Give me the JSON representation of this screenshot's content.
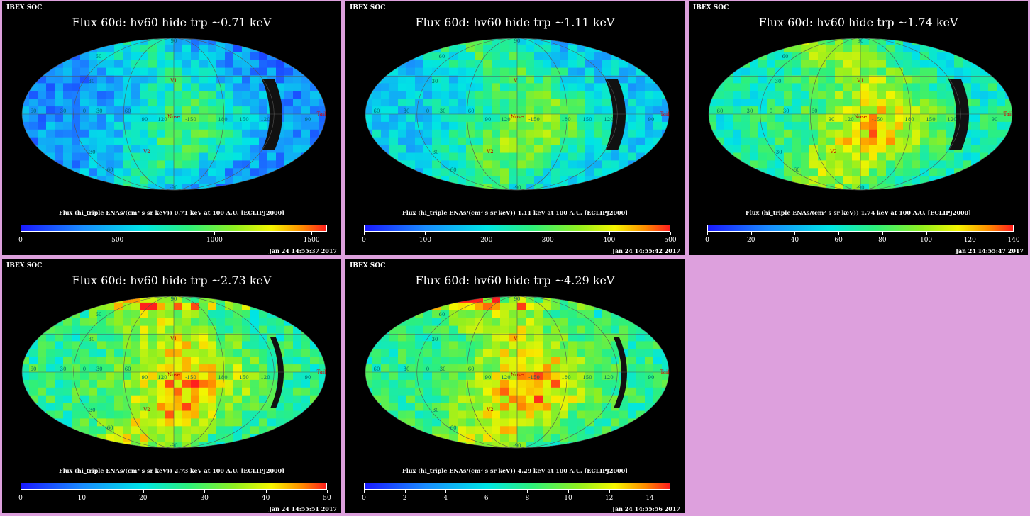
{
  "panels": [
    {
      "soc": "IBEX SOC",
      "title": "Flux   60d: hv60 hide trp ~0.71 keV",
      "cb_label": "Flux (hi_triple ENAs/(cm² s sr keV))  0.71 keV at 100 A.U. [ECLIPJ2000]",
      "date": "Jan 24 14:55:37 2017",
      "ticks": [
        "0",
        "500",
        "1000",
        "1500"
      ],
      "cmax": 1580,
      "seed": 3,
      "base": 0.2
    },
    {
      "soc": "IBEX SOC",
      "title": "Flux   60d: hv60 hide trp ~1.11 keV",
      "cb_label": "Flux (hi_triple ENAs/(cm² s sr keV))  1.11 keV at 100 A.U. [ECLIPJ2000]",
      "date": "Jan 24 14:55:42 2017",
      "ticks": [
        "0",
        "100",
        "200",
        "300",
        "400",
        "500"
      ],
      "cmax": 500,
      "seed": 7,
      "base": 0.32
    },
    {
      "soc": "IBEX SOC",
      "title": "Flux   60d: hv60 hide trp ~1.74 keV",
      "cb_label": "Flux (hi_triple ENAs/(cm² s sr keV))  1.74 keV at 100 A.U. [ECLIPJ2000]",
      "date": "Jan 24 14:55:47 2017",
      "ticks": [
        "0",
        "20",
        "40",
        "60",
        "80",
        "100",
        "120",
        "140"
      ],
      "cmax": 140,
      "seed": 11,
      "base": 0.45
    },
    {
      "soc": "IBEX SOC",
      "title": "Flux   60d: hv60 hide trp ~2.73 keV",
      "cb_label": "Flux (hi_triple ENAs/(cm² s sr keV))  2.73 keV at 100 A.U. [ECLIPJ2000]",
      "date": "Jan 24 14:55:51 2017",
      "ticks": [
        "0",
        "10",
        "20",
        "30",
        "40",
        "50"
      ],
      "cmax": 50,
      "seed": 17,
      "base": 0.5
    },
    {
      "soc": "IBEX SOC",
      "title": "Flux   60d: hv60 hide trp ~4.29 keV",
      "cb_label": "Flux (hi_triple ENAs/(cm² s sr keV))  4.29 keV at 100 A.U. [ECLIPJ2000]",
      "date": "Jan 24 14:55:56 2017",
      "ticks": [
        "0",
        "2",
        "4",
        "6",
        "8",
        "10",
        "12",
        "14"
      ],
      "cmax": 15,
      "seed": 23,
      "base": 0.5
    }
  ],
  "map_labels": {
    "nose": "Nose",
    "tail": "Tail",
    "v1": "V1",
    "v2": "V2",
    "lon": [
      "60",
      "30",
      "0",
      "-30",
      "-60",
      "90",
      "120",
      "-150",
      "180",
      "150",
      "120",
      "90"
    ],
    "lat": [
      "60",
      "30",
      "-30",
      "-60",
      "90",
      "-90"
    ]
  },
  "chart_data": [
    {
      "type": "heatmap",
      "title": "Flux   60d: hv60 hide trp ~0.71 keV",
      "colorbar_label": "Flux (hi_triple ENAs/(cm² s sr keV))  0.71 keV at 100 A.U. [ECLIPJ2000]",
      "colorbar_range": [
        0,
        1580
      ],
      "projection": "Mollweide"
    },
    {
      "type": "heatmap",
      "title": "Flux   60d: hv60 hide trp ~1.11 keV",
      "colorbar_label": "Flux (hi_triple ENAs/(cm² s sr keV))  1.11 keV at 100 A.U. [ECLIPJ2000]",
      "colorbar_range": [
        0,
        500
      ],
      "projection": "Mollweide"
    },
    {
      "type": "heatmap",
      "title": "Flux   60d: hv60 hide trp ~1.74 keV",
      "colorbar_label": "Flux (hi_triple ENAs/(cm² s sr keV))  1.74 keV at 100 A.U. [ECLIPJ2000]",
      "colorbar_range": [
        0,
        140
      ],
      "projection": "Mollweide"
    },
    {
      "type": "heatmap",
      "title": "Flux   60d: hv60 hide trp ~2.73 keV",
      "colorbar_label": "Flux (hi_triple ENAs/(cm² s sr keV))  2.73 keV at 100 A.U. [ECLIPJ2000]",
      "colorbar_range": [
        0,
        50
      ],
      "projection": "Mollweide"
    },
    {
      "type": "heatmap",
      "title": "Flux   60d: hv60 hide trp ~4.29 keV",
      "colorbar_label": "Flux (hi_triple ENAs/(cm² s sr keV))  4.29 keV at 100 A.U. [ECLIPJ2000]",
      "colorbar_range": [
        0,
        15
      ],
      "projection": "Mollweide"
    }
  ]
}
